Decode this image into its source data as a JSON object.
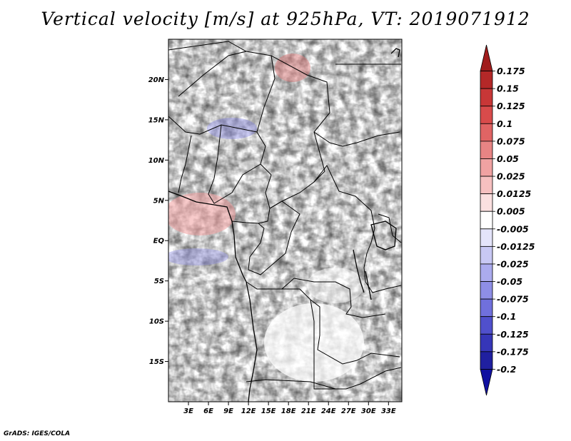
{
  "title": "Vertical velocity [m/s] at 925hPa, VT: 2019071912",
  "footer": "GrADS: IGES/COLA",
  "map": {
    "lon_range": [
      0,
      35
    ],
    "lat_range": [
      -20,
      25
    ],
    "lat_ticks": [
      {
        "value": 20,
        "label": "20N"
      },
      {
        "value": 15,
        "label": "15N"
      },
      {
        "value": 10,
        "label": "10N"
      },
      {
        "value": 5,
        "label": "5N"
      },
      {
        "value": 0,
        "label": "EQ"
      },
      {
        "value": -5,
        "label": "5S"
      },
      {
        "value": -10,
        "label": "10S"
      },
      {
        "value": -15,
        "label": "15S"
      }
    ],
    "lon_ticks": [
      {
        "value": 3,
        "label": "3E"
      },
      {
        "value": 6,
        "label": "6E"
      },
      {
        "value": 9,
        "label": "9E"
      },
      {
        "value": 12,
        "label": "12E"
      },
      {
        "value": 15,
        "label": "15E"
      },
      {
        "value": 18,
        "label": "18E"
      },
      {
        "value": 21,
        "label": "21E"
      },
      {
        "value": 24,
        "label": "24E"
      },
      {
        "value": 27,
        "label": "27E"
      },
      {
        "value": 30,
        "label": "30E"
      },
      {
        "value": 33,
        "label": "33E"
      }
    ]
  },
  "colorbar": {
    "labels": [
      "0.175",
      "0.15",
      "0.125",
      "0.1",
      "0.075",
      "0.05",
      "0.025",
      "0.0125",
      "0.005",
      "-0.005",
      "-0.0125",
      "-0.025",
      "-0.05",
      "-0.075",
      "-0.1",
      "-0.125",
      "-0.175",
      "-0.2"
    ],
    "colors": [
      "#a01c1c",
      "#b42828",
      "#c83737",
      "#d84b4b",
      "#e06464",
      "#e88484",
      "#f0a2a2",
      "#f6c0c0",
      "#fbe0e0",
      "#ffffff",
      "#e4e4fa",
      "#c8c8f4",
      "#ababee",
      "#8e8ee6",
      "#7070dc",
      "#5050cc",
      "#3636b8",
      "#2020a0",
      "#1010a0"
    ]
  }
}
